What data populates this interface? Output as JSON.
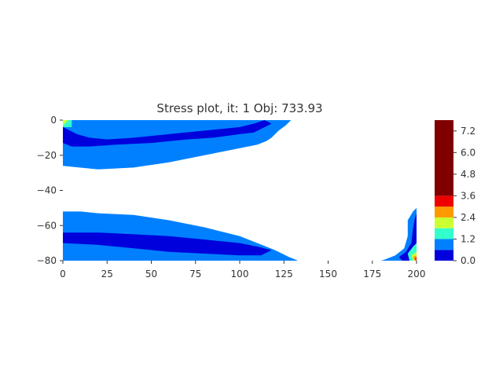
{
  "chart_data": {
    "type": "heatmap",
    "title": "Stress plot, it: 1 Obj: 733.93",
    "xlabel": "",
    "ylabel": "",
    "xlim": [
      0,
      200
    ],
    "ylim": [
      -80,
      0
    ],
    "xticks": [
      "0",
      "25",
      "50",
      "75",
      "100",
      "125",
      "150",
      "175",
      "200"
    ],
    "yticks": [
      "0",
      "−20",
      "−40",
      "−60",
      "−80"
    ],
    "colorbar": {
      "ticks": [
        "0.0",
        "1.2",
        "2.4",
        "3.6",
        "4.8",
        "6.0",
        "7.2"
      ],
      "levels": [
        {
          "range": [
            0.0,
            0.6
          ],
          "color": "#0000dd"
        },
        {
          "range": [
            0.6,
            1.2
          ],
          "color": "#0080ff"
        },
        {
          "range": [
            1.2,
            1.8
          ],
          "color": "#33ffcc"
        },
        {
          "range": [
            1.8,
            2.4
          ],
          "color": "#ccff33"
        },
        {
          "range": [
            2.4,
            3.0
          ],
          "color": "#ff9900"
        },
        {
          "range": [
            3.0,
            3.6
          ],
          "color": "#ee0000"
        },
        {
          "range": [
            3.6,
            7.8
          ],
          "color": "#800000"
        }
      ]
    },
    "regions": [
      {
        "level": 1,
        "x": [
          0,
          10,
          20,
          40,
          60,
          80,
          100,
          110,
          120,
          129,
          126,
          122,
          118,
          115,
          110,
          100,
          80,
          60,
          40,
          20,
          0
        ],
        "y": [
          0,
          0,
          0,
          0,
          0,
          0,
          0,
          0,
          0,
          0,
          -3,
          -6,
          -10,
          -12,
          -14,
          -16,
          -20,
          -24,
          -27,
          -28,
          -26
        ]
      },
      {
        "level": 0,
        "x": [
          0,
          8,
          15,
          25,
          40,
          60,
          80,
          100,
          108,
          114,
          118,
          112,
          108,
          100,
          85,
          70,
          50,
          30,
          15,
          5,
          0
        ],
        "y": [
          -4,
          -8,
          -10,
          -11,
          -10,
          -8,
          -6,
          -4,
          -2,
          0,
          -2,
          -5,
          -7,
          -8,
          -10,
          -11,
          -13,
          -14,
          -15,
          -15,
          -13
        ]
      },
      {
        "level": 2,
        "x": [
          0,
          5,
          5,
          0
        ],
        "y": [
          0,
          0,
          -4,
          -4
        ]
      },
      {
        "level": 3,
        "x": [
          0,
          3,
          0
        ],
        "y": [
          0,
          0,
          -3
        ]
      },
      {
        "level": 1,
        "x": [
          0,
          10,
          20,
          40,
          60,
          80,
          100,
          110,
          120,
          128,
          133,
          133,
          120,
          100,
          80,
          60,
          40,
          20,
          0
        ],
        "y": [
          -52,
          -52,
          -53,
          -54,
          -57,
          -61,
          -66,
          -70,
          -74,
          -78,
          -80,
          -80,
          -80,
          -80,
          -80,
          -80,
          -80,
          -80,
          -80
        ]
      },
      {
        "level": 0,
        "x": [
          0,
          20,
          40,
          60,
          80,
          100,
          110,
          118,
          112,
          100,
          80,
          60,
          40,
          20,
          0
        ],
        "y": [
          -64,
          -64,
          -65,
          -66,
          -68,
          -70,
          -72,
          -74,
          -77,
          -77,
          -76,
          -75,
          -73,
          -71,
          -70
        ]
      },
      {
        "level": 1,
        "x": [
          183,
          188,
          193,
          195,
          195,
          198,
          200,
          200,
          195,
          190,
          185,
          180
        ],
        "y": [
          -79,
          -77,
          -73,
          -66,
          -57,
          -52,
          -50,
          -80,
          -80,
          -80,
          -80,
          -80
        ]
      },
      {
        "level": 0,
        "x": [
          190,
          194,
          197,
          198,
          199,
          200,
          200,
          197,
          192
        ],
        "y": [
          -78,
          -75,
          -70,
          -62,
          -56,
          -53,
          -80,
          -80,
          -80
        ]
      },
      {
        "level": 2,
        "x": [
          195,
          198,
          200,
          200,
          196
        ],
        "y": [
          -76,
          -72,
          -70,
          -80,
          -80
        ]
      },
      {
        "level": 3,
        "x": [
          197,
          200,
          200,
          198
        ],
        "y": [
          -77,
          -75,
          -80,
          -80
        ]
      },
      {
        "level": 4,
        "x": [
          198,
          200,
          200,
          199
        ],
        "y": [
          -78,
          -77,
          -80,
          -80
        ]
      },
      {
        "level": 5,
        "x": [
          199,
          200,
          200
        ],
        "y": [
          -79,
          -78,
          -80
        ]
      }
    ]
  }
}
